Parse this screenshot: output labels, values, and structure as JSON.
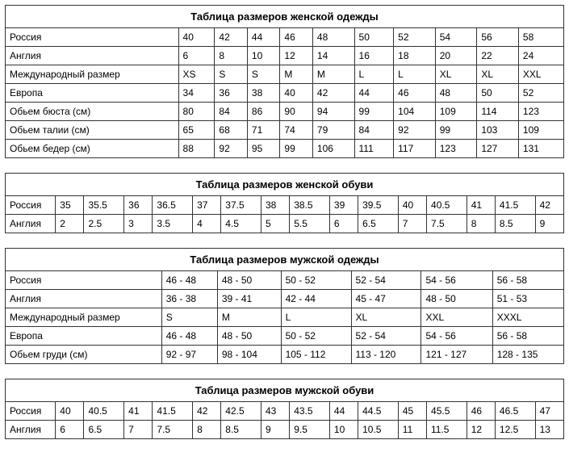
{
  "tables": [
    {
      "title": "Таблица размеров женской одежды",
      "label_col_width": "31%",
      "rows": [
        {
          "label": "Россия",
          "cells": [
            "40",
            "42",
            "44",
            "46",
            "48",
            "50",
            "52",
            "54",
            "56",
            "58"
          ]
        },
        {
          "label": "Англия",
          "cells": [
            "6",
            "8",
            "10",
            "12",
            "14",
            "16",
            "18",
            "20",
            "22",
            "24"
          ]
        },
        {
          "label": "Международный размер",
          "cells": [
            "XS",
            "S",
            "S",
            "M",
            "M",
            "L",
            "L",
            "XL",
            "XL",
            "XXL"
          ]
        },
        {
          "label": "Европа",
          "cells": [
            "34",
            "36",
            "38",
            "40",
            "42",
            "44",
            "46",
            "48",
            "50",
            "52"
          ]
        },
        {
          "label": "Обьем бюста (см)",
          "cells": [
            "80",
            "84",
            "86",
            "90",
            "94",
            "99",
            "104",
            "109",
            "114",
            "123"
          ]
        },
        {
          "label": "Обьем талии (см)",
          "cells": [
            "65",
            "68",
            "71",
            "74",
            "79",
            "84",
            "92",
            "99",
            "103",
            "109"
          ]
        },
        {
          "label": "Обьем бедер (см)",
          "cells": [
            "88",
            "92",
            "95",
            "99",
            "106",
            "111",
            "117",
            "123",
            "127",
            "131"
          ]
        }
      ]
    },
    {
      "title": "Таблица размеров женской обуви",
      "label_col_width": "9%",
      "rows": [
        {
          "label": "Россия",
          "cells": [
            "35",
            "35.5",
            "36",
            "36.5",
            "37",
            "37.5",
            "38",
            "38.5",
            "39",
            "39.5",
            "40",
            "40.5",
            "41",
            "41.5",
            "42"
          ]
        },
        {
          "label": "Англия",
          "cells": [
            "2",
            "2.5",
            "3",
            "3.5",
            "4",
            "4.5",
            "5",
            "5.5",
            "6",
            "6.5",
            "7",
            "7.5",
            "8",
            "8.5",
            "9"
          ]
        }
      ]
    },
    {
      "title": "Таблица размеров мужской одежды",
      "label_col_width": "28%",
      "rows": [
        {
          "label": "Россия",
          "cells": [
            "46 - 48",
            "48 - 50",
            "50 - 52",
            "52 - 54",
            "54 - 56",
            "56 - 58"
          ]
        },
        {
          "label": "Англия",
          "cells": [
            "36 - 38",
            "39 - 41",
            "42 - 44",
            "45 - 47",
            "48 - 50",
            "51 - 53"
          ]
        },
        {
          "label": "Международный размер",
          "cells": [
            "S",
            "M",
            "L",
            "XL",
            "XXL",
            "XXXL"
          ]
        },
        {
          "label": "Европа",
          "cells": [
            "46 - 48",
            "48 - 50",
            "50 - 52",
            "52 - 54",
            "54 - 56",
            "56 - 58"
          ]
        },
        {
          "label": "Обьем груди (см)",
          "cells": [
            "92 - 97",
            "98 - 104",
            "105 - 112",
            "113 - 120",
            "121 - 127",
            "128 - 135"
          ]
        }
      ]
    },
    {
      "title": "Таблица размеров мужской обуви",
      "label_col_width": "9%",
      "rows": [
        {
          "label": "Россия",
          "cells": [
            "40",
            "40.5",
            "41",
            "41.5",
            "42",
            "42.5",
            "43",
            "43.5",
            "44",
            "44.5",
            "45",
            "45.5",
            "46",
            "46.5",
            "47"
          ]
        },
        {
          "label": "Англия",
          "cells": [
            "6",
            "6.5",
            "7",
            "7.5",
            "8",
            "8.5",
            "9",
            "9.5",
            "10",
            "10.5",
            "11",
            "11.5",
            "12",
            "12.5",
            "13"
          ]
        }
      ]
    }
  ]
}
